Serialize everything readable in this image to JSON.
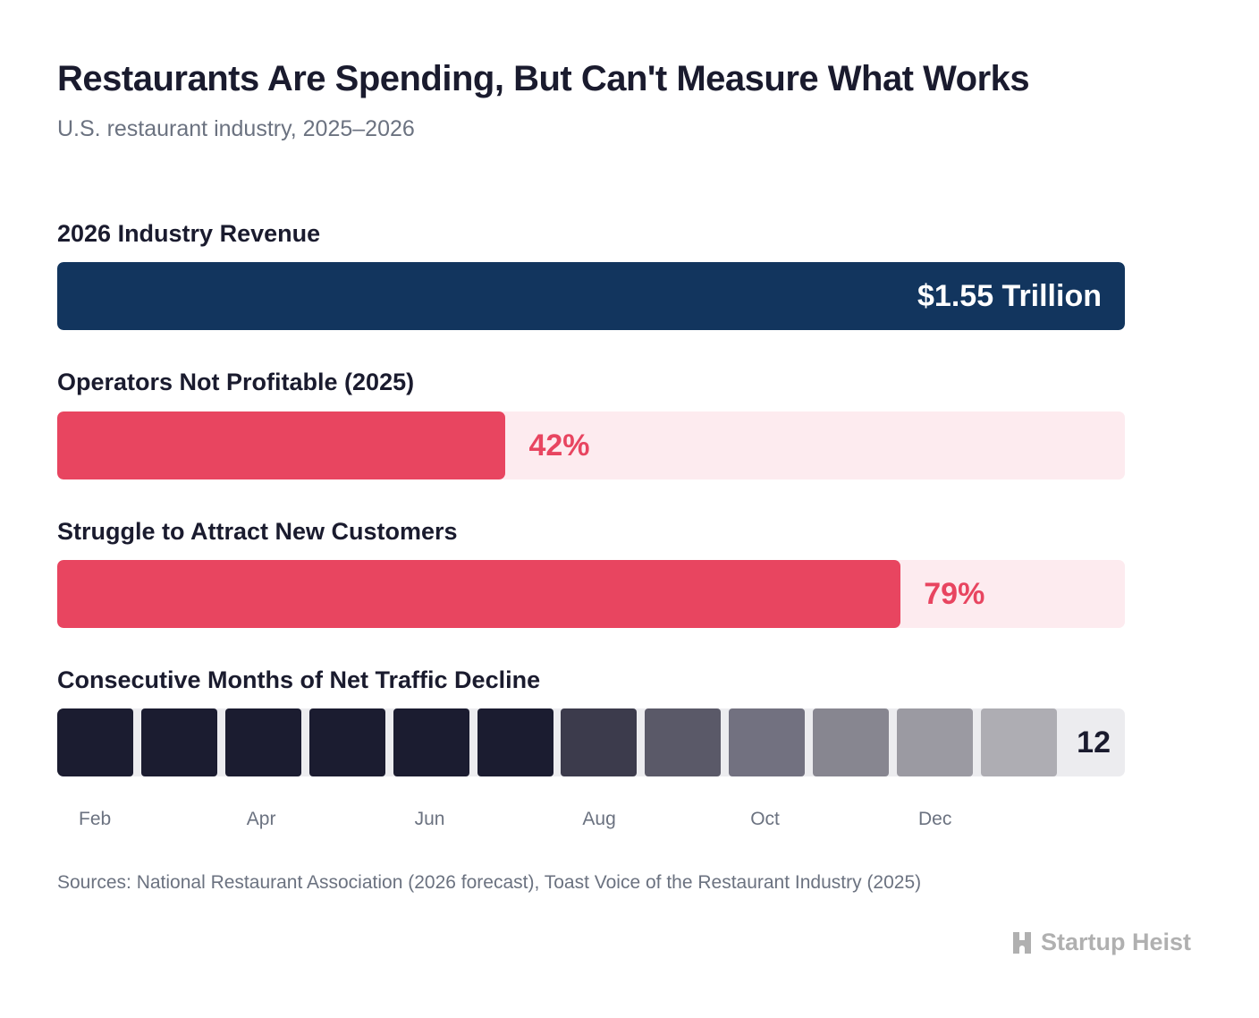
{
  "title": "Restaurants Are Spending, But Can't Measure What Works",
  "subtitle": "U.S. restaurant industry, 2025–2026",
  "sources": "Sources: National Restaurant Association (2026 forecast), Toast Voice of the Restaurant Industry (2025)",
  "logo": "Startup Heist",
  "colors": {
    "navy": "#12355e",
    "red": "#e84560",
    "red_light": "#fdebef",
    "track_gray": "#ececef"
  },
  "chart_data": [
    {
      "type": "bar",
      "title": "2026 Industry Revenue",
      "value_label": "$1.55 Trillion",
      "value": 1.55,
      "unit": "trillion USD",
      "fill_fraction": 1.0
    },
    {
      "type": "bar",
      "title": "Operators Not Profitable (2025)",
      "value_label": "42%",
      "value": 42,
      "xlim": [
        0,
        100
      ]
    },
    {
      "type": "bar",
      "title": "Struggle to Attract New Customers",
      "value_label": "79%",
      "value": 79,
      "xlim": [
        0,
        100
      ]
    },
    {
      "type": "bar",
      "title": "Consecutive Months of Net Traffic Decline",
      "value_label": "12",
      "value": 12,
      "block_colors": [
        "#1b1c30",
        "#1b1c30",
        "#1b1c30",
        "#1b1c30",
        "#1b1c30",
        "#1b1c30",
        "#3c3b4c",
        "#5a5968",
        "#727180",
        "#878690",
        "#9b9aa2",
        "#aeadb3"
      ],
      "tick_labels": [
        "Feb",
        "Apr",
        "Jun",
        "Aug",
        "Oct",
        "Dec"
      ]
    }
  ]
}
